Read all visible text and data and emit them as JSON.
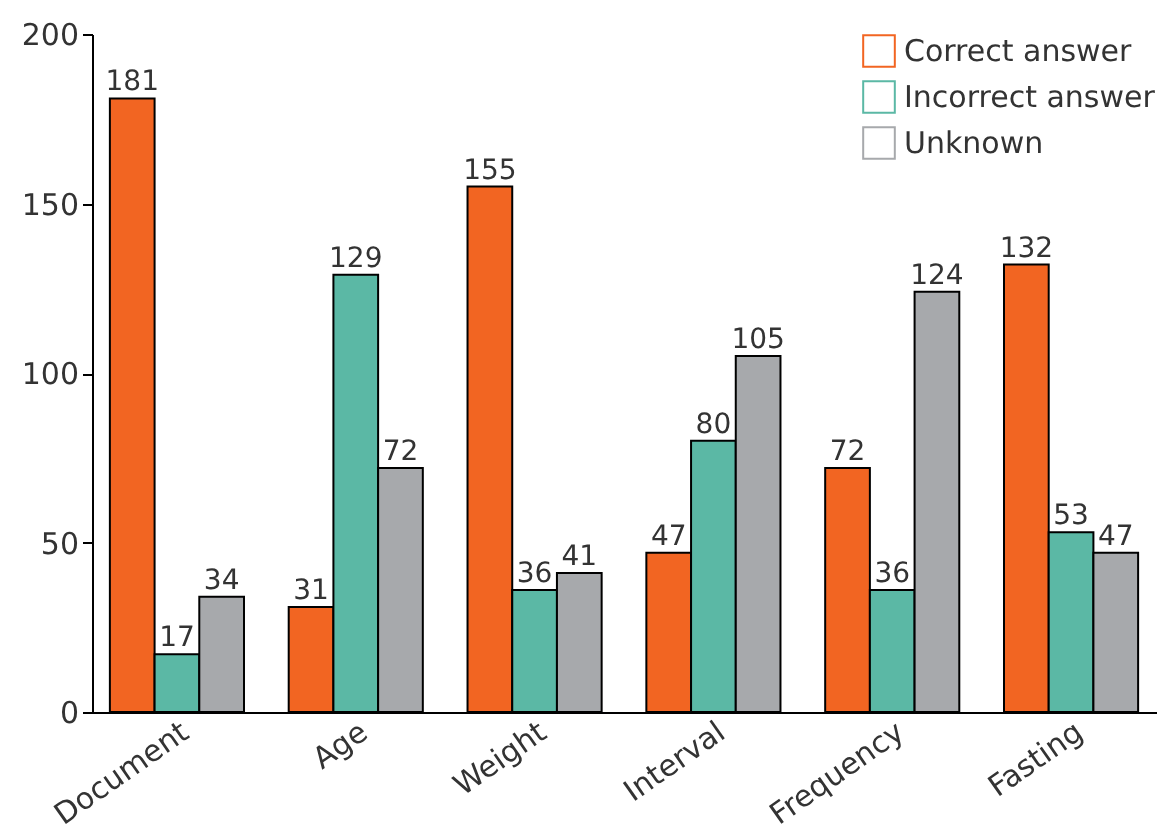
{
  "chart_data": {
    "type": "bar",
    "categories": [
      "Document",
      "Age",
      "Weight",
      "Interval",
      "Frequency",
      "Fasting"
    ],
    "series": [
      {
        "name": "Correct answer",
        "color": "#f26522",
        "values": [
          181,
          31,
          155,
          47,
          72,
          132
        ]
      },
      {
        "name": "Incorrect answer",
        "color": "#5bb8a5",
        "values": [
          17,
          129,
          36,
          80,
          36,
          53
        ]
      },
      {
        "name": "Unknown",
        "color": "#a7a9ac",
        "values": [
          34,
          72,
          41,
          105,
          124,
          47
        ]
      }
    ],
    "ylim": [
      0,
      200
    ],
    "yticks": [
      0,
      50,
      100,
      150,
      200
    ],
    "grid": false,
    "legend": "top right",
    "data_labels": true
  }
}
